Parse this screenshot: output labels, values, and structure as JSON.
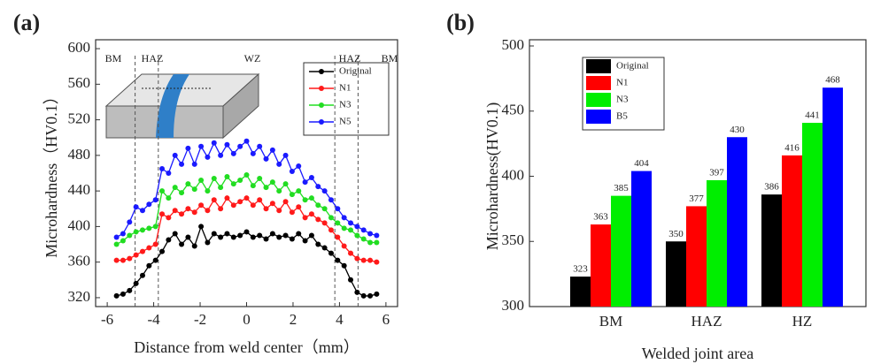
{
  "chart_data": [
    {
      "type": "line",
      "panel_label": "(a)",
      "x_label": "Distance from weld center（mm）",
      "y_label": "Microhardness（HV0.1）",
      "x": [
        -5.6,
        -5.32,
        -5.04,
        -4.76,
        -4.48,
        -4.2,
        -3.92,
        -3.64,
        -3.36,
        -3.08,
        -2.8,
        -2.52,
        -2.24,
        -1.96,
        -1.68,
        -1.4,
        -1.12,
        -0.84,
        -0.56,
        -0.28,
        0,
        0.28,
        0.56,
        0.84,
        1.12,
        1.4,
        1.68,
        1.96,
        2.24,
        2.52,
        2.8,
        3.08,
        3.36,
        3.64,
        3.92,
        4.2,
        4.48,
        4.76,
        5.04,
        5.32,
        5.6
      ],
      "series": [
        {
          "name": "Original",
          "color": "#000000",
          "values": [
            322,
            324,
            328,
            336,
            345,
            356,
            362,
            372,
            385,
            392,
            380,
            388,
            378,
            400,
            382,
            392,
            388,
            392,
            388,
            390,
            394,
            388,
            390,
            386,
            392,
            388,
            390,
            386,
            392,
            384,
            390,
            380,
            376,
            370,
            362,
            356,
            340,
            326,
            322,
            322,
            324
          ]
        },
        {
          "name": "N1",
          "color": "#ff1a1a",
          "values": [
            362,
            362,
            364,
            368,
            372,
            376,
            380,
            414,
            410,
            418,
            414,
            420,
            416,
            424,
            418,
            430,
            420,
            432,
            424,
            428,
            432,
            424,
            430,
            420,
            426,
            418,
            428,
            416,
            422,
            410,
            414,
            408,
            404,
            396,
            388,
            378,
            370,
            364,
            362,
            362,
            360
          ]
        },
        {
          "name": "N3",
          "color": "#22dd22",
          "values": [
            380,
            384,
            390,
            394,
            396,
            398,
            400,
            440,
            432,
            444,
            438,
            448,
            442,
            452,
            440,
            454,
            444,
            456,
            448,
            452,
            458,
            446,
            454,
            444,
            450,
            440,
            448,
            436,
            440,
            430,
            432,
            424,
            420,
            410,
            404,
            398,
            396,
            390,
            386,
            382,
            382
          ]
        },
        {
          "name": "N5",
          "color": "#1a1aff",
          "values": [
            388,
            392,
            405,
            422,
            418,
            425,
            430,
            465,
            460,
            480,
            470,
            488,
            470,
            490,
            478,
            494,
            480,
            492,
            482,
            490,
            496,
            482,
            490,
            476,
            486,
            470,
            480,
            462,
            468,
            450,
            455,
            445,
            440,
            430,
            420,
            410,
            404,
            400,
            396,
            392,
            390
          ]
        }
      ],
      "xlim": [
        -6.5,
        6.5
      ],
      "xticks": [
        -6,
        -4,
        -2,
        0,
        2,
        4,
        6
      ],
      "ylim": [
        310,
        610
      ],
      "yticks": [
        320,
        360,
        400,
        440,
        480,
        520,
        560,
        600
      ],
      "annotations": [
        "BM",
        "HAZ",
        "WZ",
        "HAZ",
        "BM"
      ],
      "legend": "upper right"
    },
    {
      "type": "bar",
      "panel_label": "(b)",
      "x_label": "Welded joint area",
      "y_label": "Microhardness(HV0.1)",
      "categories": [
        "BM",
        "HAZ",
        "HZ"
      ],
      "series": [
        {
          "name": "Original",
          "color": "#000000",
          "values": [
            323,
            350,
            386
          ]
        },
        {
          "name": "N1",
          "color": "#ff0000",
          "values": [
            363,
            377,
            416
          ]
        },
        {
          "name": "N3",
          "color": "#00ee00",
          "values": [
            385,
            397,
            441
          ]
        },
        {
          "name": "B5",
          "color": "#0000ff",
          "values": [
            404,
            430,
            468
          ]
        }
      ],
      "ylim": [
        300,
        500
      ],
      "yticks": [
        300,
        350,
        400,
        450,
        500
      ],
      "legend": "upper left"
    }
  ]
}
